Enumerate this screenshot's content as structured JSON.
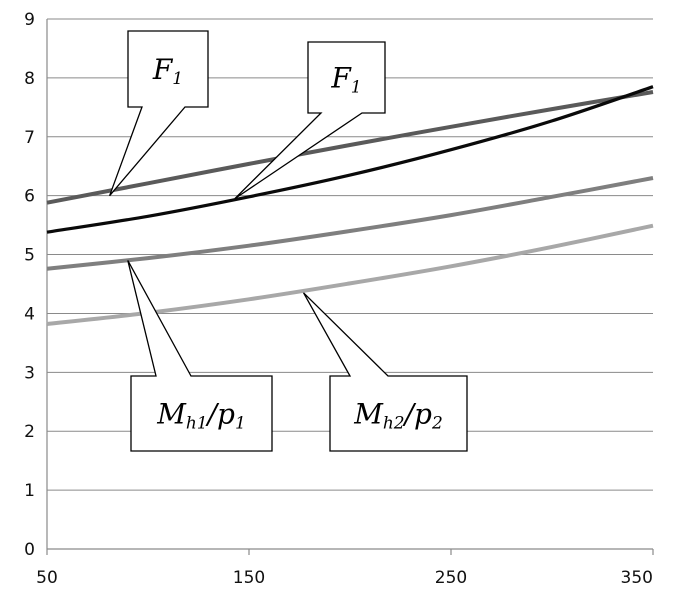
{
  "chart_data": {
    "type": "line",
    "title": "",
    "xlabel": "",
    "ylabel": "",
    "xlim": [
      50,
      350
    ],
    "ylim": [
      0,
      9
    ],
    "x_ticks": [
      "50",
      "150",
      "250",
      "350"
    ],
    "y_ticks": [
      "0",
      "1",
      "2",
      "3",
      "4",
      "5",
      "6",
      "7",
      "8",
      "9"
    ],
    "grid": "horizontal",
    "x": [
      50,
      100,
      150,
      200,
      250,
      300,
      350
    ],
    "series": [
      {
        "id": "upper",
        "color": "#5a5a5a",
        "values": [
          5.88,
          6.21,
          6.54,
          6.86,
          7.17,
          7.47,
          7.76
        ]
      },
      {
        "id": "dark",
        "color": "#0a0a0a",
        "values": [
          5.38,
          5.65,
          5.98,
          6.35,
          6.78,
          7.27,
          7.85
        ]
      },
      {
        "id": "middle",
        "color": "#7f7f7f",
        "values": [
          4.76,
          4.94,
          5.15,
          5.4,
          5.67,
          5.98,
          6.3
        ]
      },
      {
        "id": "lower",
        "color": "#a8a8a8",
        "values": [
          3.82,
          4.01,
          4.24,
          4.51,
          4.8,
          5.13,
          5.49
        ]
      }
    ],
    "annotations": [
      {
        "id": "callout-f1-left",
        "main": "F",
        "sub": "1",
        "series": "upper",
        "x": 81,
        "y": 6.0
      },
      {
        "id": "callout-f1-right",
        "main": "F",
        "sub": "1",
        "series": "dark",
        "x": 143,
        "y": 5.95
      },
      {
        "id": "callout-mh1-p1",
        "main": "M",
        "sub": "h1",
        "main2": "/p",
        "sub2": "1",
        "series": "middle",
        "x": 90,
        "y": 4.9
      },
      {
        "id": "callout-mh2-p2",
        "main": "M",
        "sub": "h2",
        "main2": "/p",
        "sub2": "2",
        "series": "lower",
        "x": 177,
        "y": 4.35
      }
    ]
  }
}
